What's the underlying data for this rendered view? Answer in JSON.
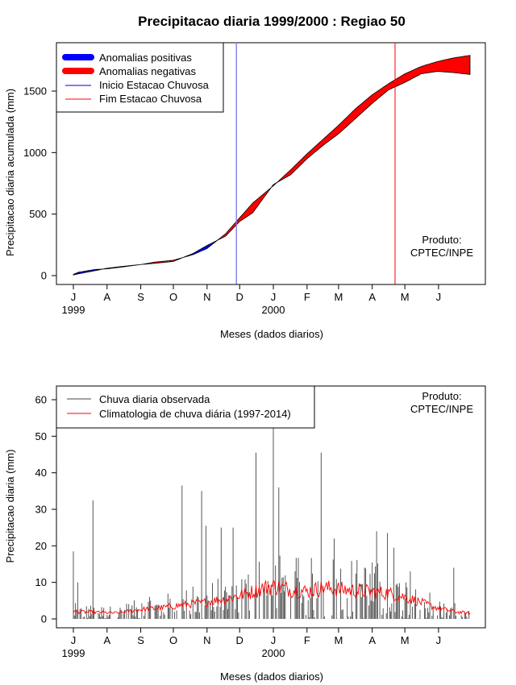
{
  "chart_data": [
    {
      "type": "area",
      "title": "Precipitacao diaria 1999/2000 : Regiao 50",
      "xlabel": "Meses (dados diarios)",
      "ylabel": "Precipitacao diaria acumulada (mm)",
      "months": [
        "J",
        "A",
        "S",
        "O",
        "N",
        "D",
        "J",
        "F",
        "M",
        "A",
        "M",
        "J"
      ],
      "year_labels": [
        {
          "label": "1999",
          "month_index": 0
        },
        {
          "label": "2000",
          "month_index": 6
        }
      ],
      "ylim": [
        0,
        1800
      ],
      "yticks": [
        0,
        500,
        1000,
        1500
      ],
      "legend": [
        {
          "label": "Anomalias positivas",
          "color": "#0000ff"
        },
        {
          "label": "Anomalias negativas",
          "color": "#ff0000"
        },
        {
          "label": "Inicio Estacao Chuvosa",
          "color": "#0000cc"
        },
        {
          "label": "Fim Estacao Chuvosa",
          "color": "#ff0000"
        }
      ],
      "note": [
        "Produto:",
        "CPTEC/INPE"
      ],
      "rain_season_start_day": 150,
      "rain_season_end_day": 296,
      "cumulative_observed": {
        "day": [
          0,
          5,
          20,
          31,
          45,
          62,
          75,
          92,
          110,
          123,
          140,
          153,
          165,
          184,
          200,
          215,
          230,
          245,
          260,
          275,
          290,
          305,
          320,
          335,
          350,
          365
        ],
        "value": [
          10,
          28,
          50,
          55,
          70,
          90,
          100,
          115,
          180,
          245,
          320,
          440,
          510,
          740,
          820,
          950,
          1060,
          1160,
          1280,
          1400,
          1510,
          1570,
          1640,
          1660,
          1650,
          1635
        ]
      },
      "cumulative_climatology": {
        "day": [
          0,
          5,
          20,
          31,
          45,
          62,
          75,
          92,
          110,
          123,
          140,
          153,
          165,
          184,
          200,
          215,
          230,
          245,
          260,
          275,
          290,
          305,
          320,
          335,
          350,
          365
        ],
        "value": [
          5,
          15,
          40,
          60,
          75,
          90,
          110,
          125,
          170,
          220,
          340,
          470,
          590,
          730,
          860,
          990,
          1110,
          1230,
          1360,
          1470,
          1560,
          1640,
          1700,
          1740,
          1770,
          1790
        ]
      }
    },
    {
      "type": "bar",
      "xlabel": "Meses (dados diarios)",
      "ylabel": "Precipitacao diaria (mm)",
      "months": [
        "J",
        "A",
        "S",
        "O",
        "N",
        "D",
        "J",
        "F",
        "M",
        "A",
        "M",
        "J"
      ],
      "year_labels": [
        {
          "label": "1999",
          "month_index": 0
        },
        {
          "label": "2000",
          "month_index": 6
        }
      ],
      "ylim": [
        0,
        65
      ],
      "yticks": [
        0,
        10,
        20,
        30,
        40,
        50,
        60
      ],
      "legend": [
        {
          "label": "Chuva diaria observada",
          "color": "#444444"
        },
        {
          "label": "Climatologia de chuva diária (1997-2014)",
          "color": "#ff0000"
        }
      ],
      "note": [
        "Produto:",
        "CPTEC/INPE"
      ],
      "observed_peaks": {
        "day": [
          0,
          4,
          18,
          100,
          118,
          122,
          136,
          147,
          168,
          184,
          189,
          228,
          240,
          279,
          289,
          295,
          310,
          350
        ],
        "value": [
          18.5,
          10,
          32.5,
          36.5,
          35,
          25.5,
          25,
          25,
          45.5,
          53,
          36,
          45.5,
          22,
          24,
          23.5,
          19.5,
          13,
          14
        ]
      },
      "climatology_curve": {
        "day": [
          0,
          20,
          40,
          60,
          80,
          100,
          120,
          140,
          160,
          175,
          185,
          200,
          215,
          230,
          250,
          270,
          290,
          305,
          320,
          335,
          350,
          365
        ],
        "value": [
          2,
          1.8,
          1.6,
          2.5,
          3,
          3.8,
          4.5,
          5.5,
          7,
          8.5,
          9,
          8,
          7.5,
          8.5,
          8,
          7.5,
          7,
          6,
          4.5,
          3,
          2,
          1.5
        ]
      }
    }
  ]
}
